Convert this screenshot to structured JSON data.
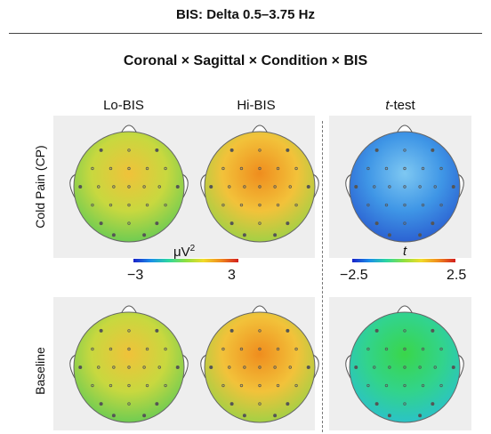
{
  "title": {
    "bold": "BIS:",
    "rest": " Delta 0.5–3.75 Hz"
  },
  "subtitle": "Coronal × Sagittal × Condition × BIS",
  "columns": {
    "lo": "Lo-BIS",
    "hi": "Hi-BIS",
    "ttest_italic": "t",
    "ttest_rest": "-test"
  },
  "rows": {
    "cold": "Cold Pain (CP)",
    "baseline": "Baseline"
  },
  "colorbars": {
    "uv": {
      "unit_base": "μV",
      "unit_exp": "2",
      "min": "−3",
      "max": "3"
    },
    "t": {
      "label": "t",
      "min": "−2.5",
      "max": "2.5"
    }
  },
  "colors": {
    "panel_bg": "#eeeeee",
    "map_lo": {
      "center": "#f0c23a",
      "mid": "#c8d83f",
      "edge": "#6fcc52"
    },
    "map_hi": {
      "center": "#ef8d1e",
      "mid": "#f2c23a",
      "edge": "#a3d045"
    },
    "map_t_cp": {
      "center": "#7ec8f2",
      "mid": "#3f96e6",
      "edge": "#2c62d2"
    },
    "map_t_base": {
      "center": "#3ad64a",
      "mid": "#32d48a",
      "edge": "#2bc3c6"
    }
  }
}
